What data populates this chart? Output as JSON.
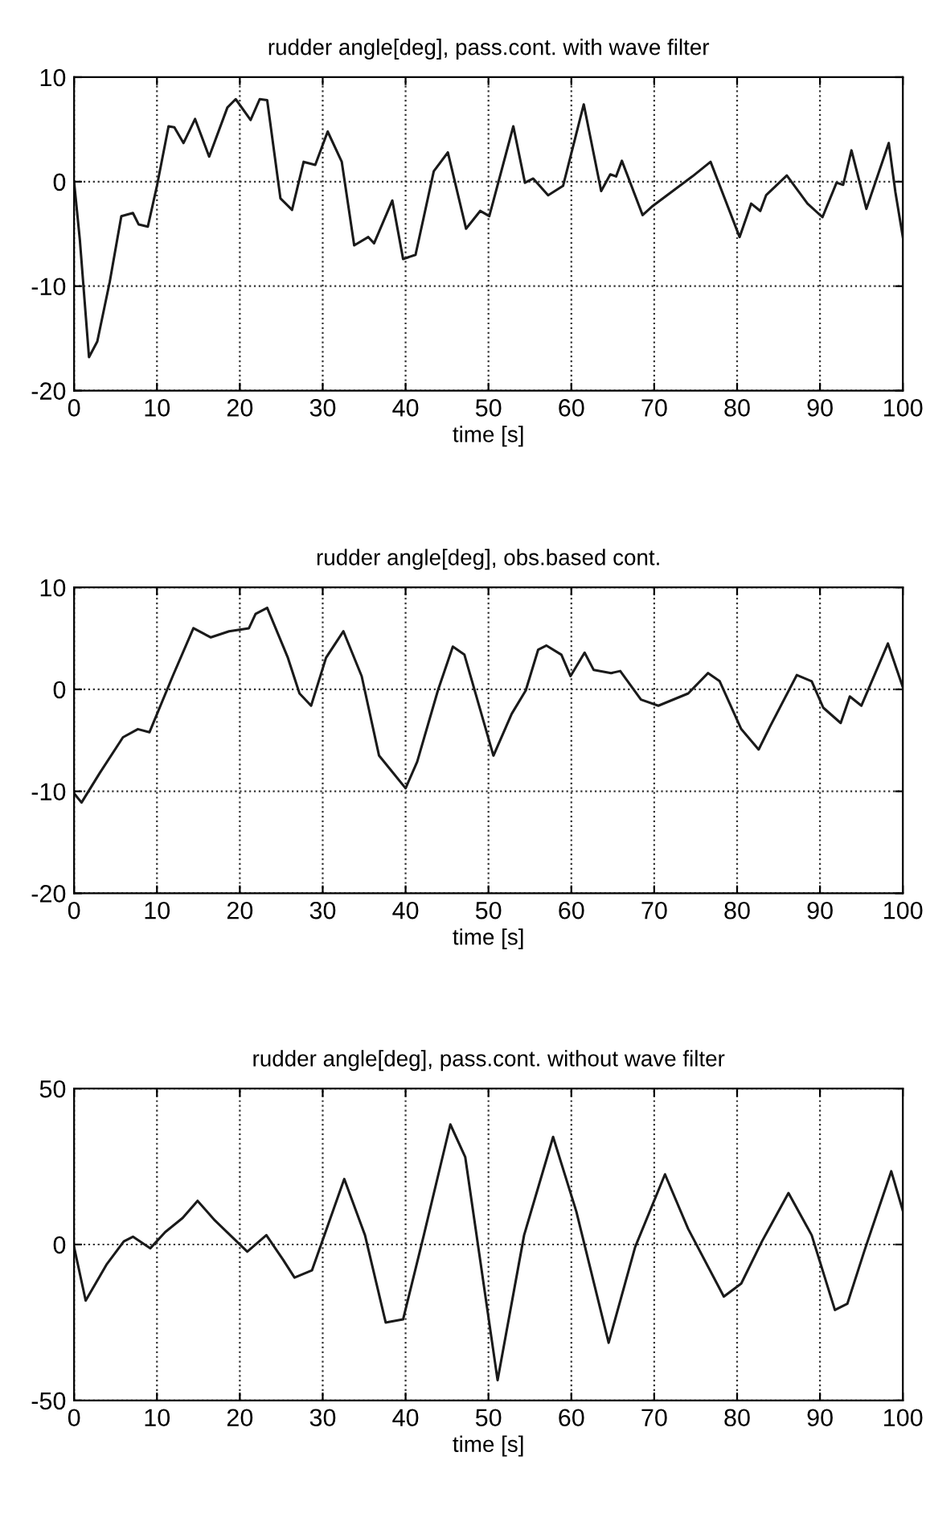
{
  "chart_data": [
    {
      "type": "line",
      "title": "rudder angle[deg], pass.cont. with wave filter",
      "xlabel": "time [s]",
      "xlim": [
        0,
        100
      ],
      "ylim": [
        -20,
        10
      ],
      "xticks": [
        0,
        10,
        20,
        30,
        40,
        50,
        60,
        70,
        80,
        90,
        100
      ],
      "yticks": [
        -20,
        -10,
        0,
        10
      ],
      "grid": true,
      "line_style": "solid",
      "marker": "none",
      "series": [
        {
          "color": "#1a1a1a",
          "x": [
            0,
            0.7,
            1.8,
            2.8,
            4.3,
            5.7,
            7.1,
            7.8,
            8.9,
            10,
            11.4,
            12.1,
            13.2,
            14.6,
            16.3,
            18.5,
            19.5,
            21.3,
            22.4,
            23.3,
            24.9,
            26.3,
            27.7,
            29.1,
            30.6,
            32.3,
            33.8,
            35.5,
            36.2,
            38.4,
            39.7,
            41.2,
            43.4,
            45.1,
            47.3,
            49,
            50.1,
            53,
            54.4,
            55.4,
            57.2,
            59,
            61.5,
            63.6,
            64.7,
            65.4,
            66.1,
            68.6,
            69.7,
            74.6,
            76.8,
            80.3,
            81.7,
            82.8,
            83.5,
            86,
            88.5,
            90.3,
            92,
            92.8,
            93.8,
            95.6,
            98.3,
            99.1,
            100
          ],
          "values": [
            0,
            -5.6,
            -16.8,
            -15.3,
            -9.6,
            -3.3,
            -3,
            -4.1,
            -4.3,
            -0.4,
            5.3,
            5.2,
            3.7,
            6,
            2.4,
            7.1,
            7.9,
            5.9,
            7.9,
            7.8,
            -1.6,
            -2.7,
            1.9,
            1.6,
            4.8,
            1.9,
            -6.1,
            -5.3,
            -5.9,
            -1.8,
            -7.4,
            -7,
            1,
            2.8,
            -4.5,
            -2.8,
            -3.3,
            5.3,
            -0.1,
            0.3,
            -1.3,
            -0.4,
            7.4,
            -0.9,
            0.7,
            0.5,
            2,
            -3.2,
            -2.4,
            0.5,
            1.9,
            -5.3,
            -2.1,
            -2.8,
            -1.3,
            0.6,
            -2.1,
            -3.4,
            -0.1,
            -0.3,
            3,
            -2.6,
            3.7,
            -1,
            -5.3
          ]
        }
      ]
    },
    {
      "type": "line",
      "title": "rudder angle[deg], obs.based cont.",
      "xlabel": "time [s]",
      "xlim": [
        0,
        100
      ],
      "ylim": [
        -20,
        10
      ],
      "xticks": [
        0,
        10,
        20,
        30,
        40,
        50,
        60,
        70,
        80,
        90,
        100
      ],
      "yticks": [
        -20,
        -10,
        0,
        10
      ],
      "grid": true,
      "line_style": "solid",
      "marker": "none",
      "series": [
        {
          "color": "#1a1a1a",
          "x": [
            0,
            0.9,
            3.1,
            5.9,
            7.7,
            9.1,
            11.9,
            14.4,
            16.5,
            18.7,
            21.1,
            21.9,
            23.3,
            25.8,
            27.2,
            28.6,
            30.4,
            32.5,
            34.7,
            36.8,
            38.2,
            40,
            41.4,
            43.9,
            45.7,
            47.1,
            50.6,
            52.8,
            54.5,
            56,
            57,
            58.8,
            59.9,
            61.6,
            62.7,
            64.8,
            65.9,
            68.4,
            70.5,
            74.1,
            76.5,
            77.9,
            80.5,
            82.6,
            84,
            87.2,
            89,
            90.4,
            92.5,
            93.6,
            95,
            98.2,
            100
          ],
          "values": [
            -10.2,
            -11.1,
            -8.2,
            -4.7,
            -3.9,
            -4.2,
            1.3,
            6,
            5.1,
            5.7,
            6,
            7.4,
            8,
            3.1,
            -0.4,
            -1.6,
            3.1,
            5.7,
            1.3,
            -6.5,
            -7.9,
            -9.7,
            -7.1,
            -0.1,
            4.2,
            3.4,
            -6.5,
            -2.4,
            -0.1,
            3.9,
            4.3,
            3.4,
            1.3,
            3.6,
            1.9,
            1.6,
            1.8,
            -1,
            -1.6,
            -0.4,
            1.6,
            0.8,
            -3.9,
            -5.9,
            -3.6,
            1.4,
            0.8,
            -1.8,
            -3.3,
            -0.7,
            -1.6,
            4.5,
            0.2
          ]
        }
      ]
    },
    {
      "type": "line",
      "title": "rudder angle[deg], pass.cont. without wave filter",
      "xlabel": "time [s]",
      "xlim": [
        0,
        100
      ],
      "ylim": [
        -50,
        50
      ],
      "xticks": [
        0,
        10,
        20,
        30,
        40,
        50,
        60,
        70,
        80,
        90,
        100
      ],
      "yticks": [
        -50,
        0,
        50
      ],
      "grid": true,
      "line_style": "solid",
      "marker": "none",
      "series": [
        {
          "color": "#1a1a1a",
          "x": [
            0,
            1.4,
            3.9,
            6,
            7.1,
            9.2,
            11,
            13.1,
            14.9,
            17,
            20.9,
            23.2,
            25.2,
            26.6,
            28.7,
            32.6,
            35.1,
            37.6,
            39.7,
            42.2,
            45.4,
            47.2,
            51.1,
            54.3,
            57.8,
            60.6,
            64.5,
            67.7,
            71.3,
            74.1,
            78.4,
            80.5,
            83,
            86.2,
            89,
            91.8,
            93.3,
            95.4,
            98.6,
            100
          ],
          "values": [
            -0.8,
            -18,
            -6.5,
            1,
            2.5,
            -1.2,
            4,
            8.5,
            14,
            7.7,
            -2.3,
            3,
            -4.8,
            -10.6,
            -8.3,
            21,
            3,
            -25,
            -24,
            3,
            38.5,
            28,
            -43.5,
            3,
            34.5,
            10.6,
            -31.5,
            -0.8,
            22.5,
            5,
            -16.7,
            -12.5,
            1,
            16.5,
            3,
            -21,
            -19,
            -1.7,
            23.5,
            10.8
          ]
        }
      ]
    }
  ]
}
